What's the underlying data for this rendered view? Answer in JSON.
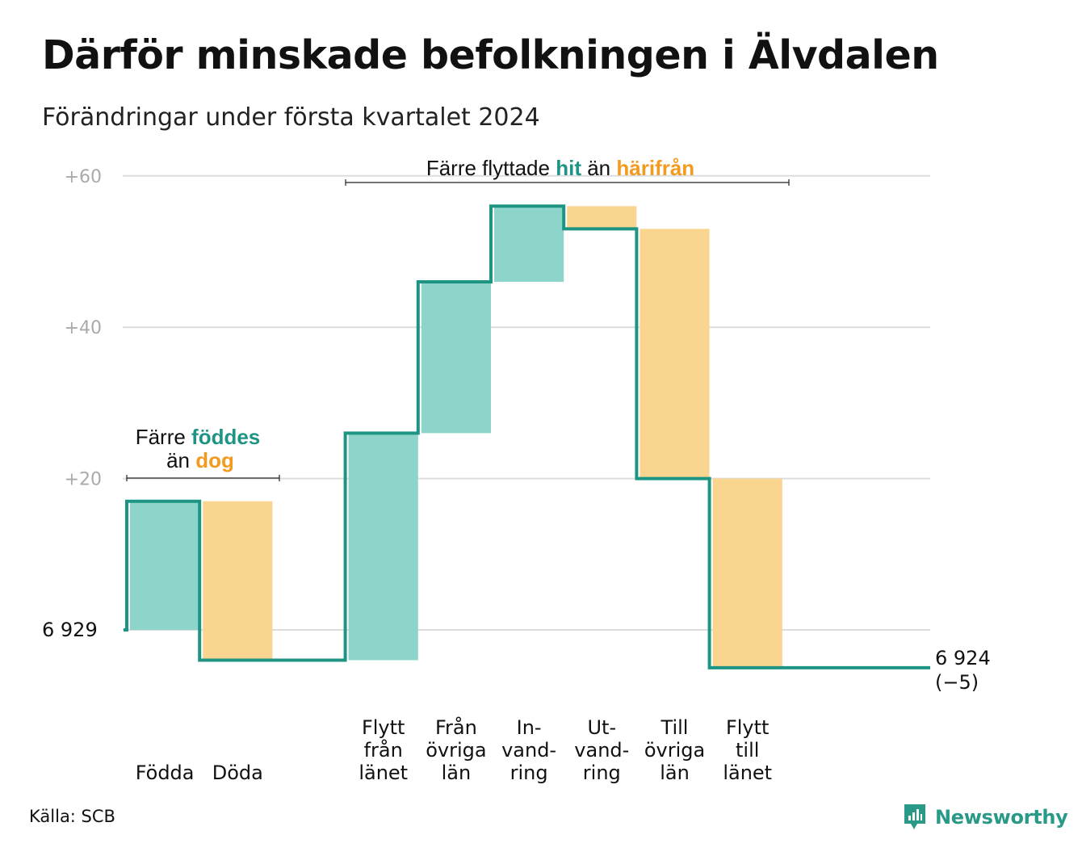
{
  "title": "Därför minskade befolkningen i Älvdalen",
  "subtitle": "Förändringar under första kvartalet 2024",
  "source": "Källa: SCB",
  "brand": "Newsworthy",
  "colors": {
    "increase": "#8dd5cb",
    "decrease": "#fad58f",
    "line": "#1e9584",
    "teal_text": "#1e9584",
    "orange_text": "#f39a1f",
    "grid": "#dddddd",
    "tick": "#aaaaaa"
  },
  "annotations": {
    "births": {
      "prefix": "Färre",
      "highlight1": "föddes",
      "middle": "än",
      "highlight2": "dog"
    },
    "migration": {
      "prefix": "Färre flyttade",
      "highlight1": "hit",
      "middle": "än",
      "highlight2": "härifrån"
    }
  },
  "chart_data": {
    "type": "waterfall",
    "start_label": "6  929",
    "end_label": "6 924",
    "end_change": "(−5)",
    "yticks": [
      "+20",
      "+40",
      "+60"
    ],
    "ytick_values": [
      20,
      40,
      60
    ],
    "ylim": [
      -8,
      63
    ],
    "categories": [
      [
        "Födda"
      ],
      [
        "Döda"
      ],
      [],
      [
        "Flytt",
        "från",
        "länet"
      ],
      [
        "Från",
        "övriga",
        "län"
      ],
      [
        "In-",
        "vand-",
        "ring"
      ],
      [
        "Ut-",
        "vand-",
        "ring"
      ],
      [
        "Till",
        "övriga",
        "län"
      ],
      [
        "Flytt",
        "till",
        "länet"
      ]
    ],
    "steps": [
      {
        "name": "Födda",
        "change": 17
      },
      {
        "name": "Döda",
        "change": -21
      },
      {
        "name": "",
        "change": 0
      },
      {
        "name": "Flytt från länet",
        "change": 30
      },
      {
        "name": "Från övriga län",
        "change": 20
      },
      {
        "name": "Invandring",
        "change": 10
      },
      {
        "name": "Utvandring",
        "change": -3
      },
      {
        "name": "Till övriga län",
        "change": -33
      },
      {
        "name": "Flytt till länet",
        "change": -25
      }
    ],
    "net_change": -5
  }
}
